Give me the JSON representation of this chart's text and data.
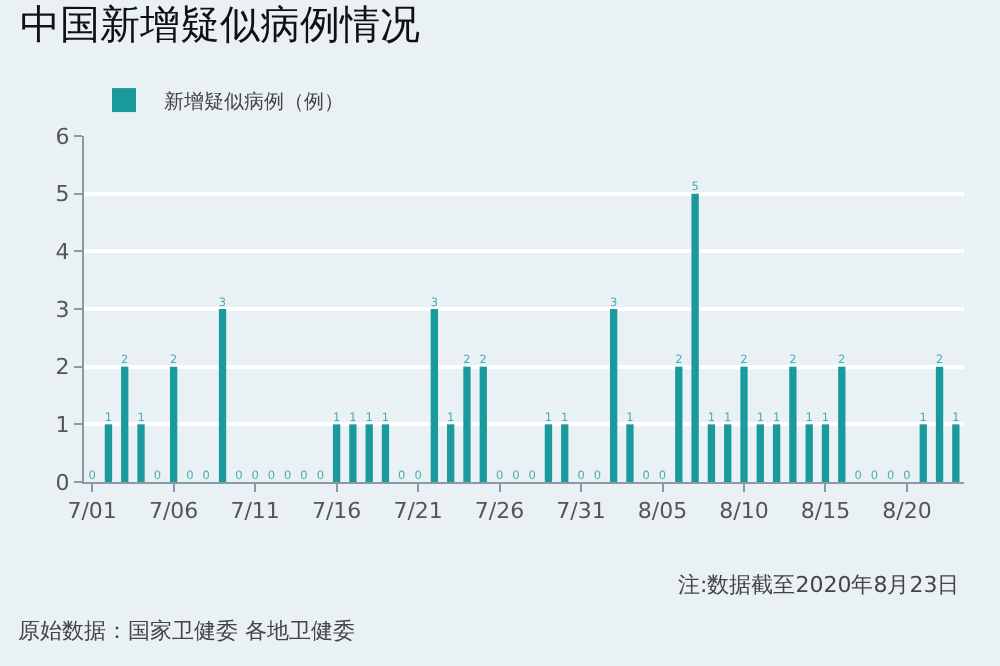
{
  "chart_data": {
    "type": "bar",
    "title": "中国新增疑似病例情况",
    "x": [
      "2020-07-01",
      "2020-07-02",
      "2020-07-03",
      "2020-07-04",
      "2020-07-05",
      "2020-07-06",
      "2020-07-07",
      "2020-07-08",
      "2020-07-09",
      "2020-07-10",
      "2020-07-11",
      "2020-07-12",
      "2020-07-13",
      "2020-07-14",
      "2020-07-15",
      "2020-07-16",
      "2020-07-17",
      "2020-07-18",
      "2020-07-19",
      "2020-07-20",
      "2020-07-21",
      "2020-07-22",
      "2020-07-23",
      "2020-07-24",
      "2020-07-25",
      "2020-07-26",
      "2020-07-27",
      "2020-07-28",
      "2020-07-29",
      "2020-07-30",
      "2020-07-31",
      "2020-08-01",
      "2020-08-02",
      "2020-08-03",
      "2020-08-04",
      "2020-08-05",
      "2020-08-06",
      "2020-08-07",
      "2020-08-08",
      "2020-08-09",
      "2020-08-10",
      "2020-08-11",
      "2020-08-12",
      "2020-08-13",
      "2020-08-14",
      "2020-08-15",
      "2020-08-16",
      "2020-08-17",
      "2020-08-18",
      "2020-08-19",
      "2020-08-20",
      "2020-08-21",
      "2020-08-22",
      "2020-08-23"
    ],
    "series": [
      {
        "name": "新增疑似病例（例）",
        "color": "#1a9a9c",
        "values": [
          0,
          1,
          2,
          1,
          0,
          2,
          0,
          0,
          3,
          0,
          0,
          0,
          0,
          0,
          0,
          1,
          1,
          1,
          1,
          0,
          0,
          3,
          1,
          2,
          2,
          0,
          0,
          0,
          1,
          1,
          0,
          0,
          3,
          1,
          0,
          0,
          2,
          5,
          1,
          1,
          2,
          1,
          1,
          2,
          1,
          1,
          2,
          0,
          0,
          0,
          0,
          1,
          2,
          1
        ]
      }
    ],
    "xlim": [
      "2020-06-30T12:00",
      "2020-08-23T12:00"
    ],
    "xticks": [
      {
        "value": "2020-07-01",
        "label": "7/01"
      },
      {
        "value": "2020-07-06",
        "label": "7/06"
      },
      {
        "value": "2020-07-11",
        "label": "7/11"
      },
      {
        "value": "2020-07-16",
        "label": "7/16"
      },
      {
        "value": "2020-07-21",
        "label": "7/21"
      },
      {
        "value": "2020-07-26",
        "label": "7/26"
      },
      {
        "value": "2020-07-31",
        "label": "7/31"
      },
      {
        "value": "2020-08-05",
        "label": "8/05"
      },
      {
        "value": "2020-08-10",
        "label": "8/10"
      },
      {
        "value": "2020-08-15",
        "label": "8/15"
      },
      {
        "value": "2020-08-20",
        "label": "8/20"
      }
    ],
    "ylim": [
      0,
      6
    ],
    "yticks": [
      0,
      1,
      2,
      3,
      4,
      5,
      6
    ],
    "grid": "y",
    "legend": "top left",
    "data_labels": true,
    "annotations": [
      "注:数据截至2020年8月23日",
      "原始数据：国家卫健委 各地卫健委"
    ]
  }
}
